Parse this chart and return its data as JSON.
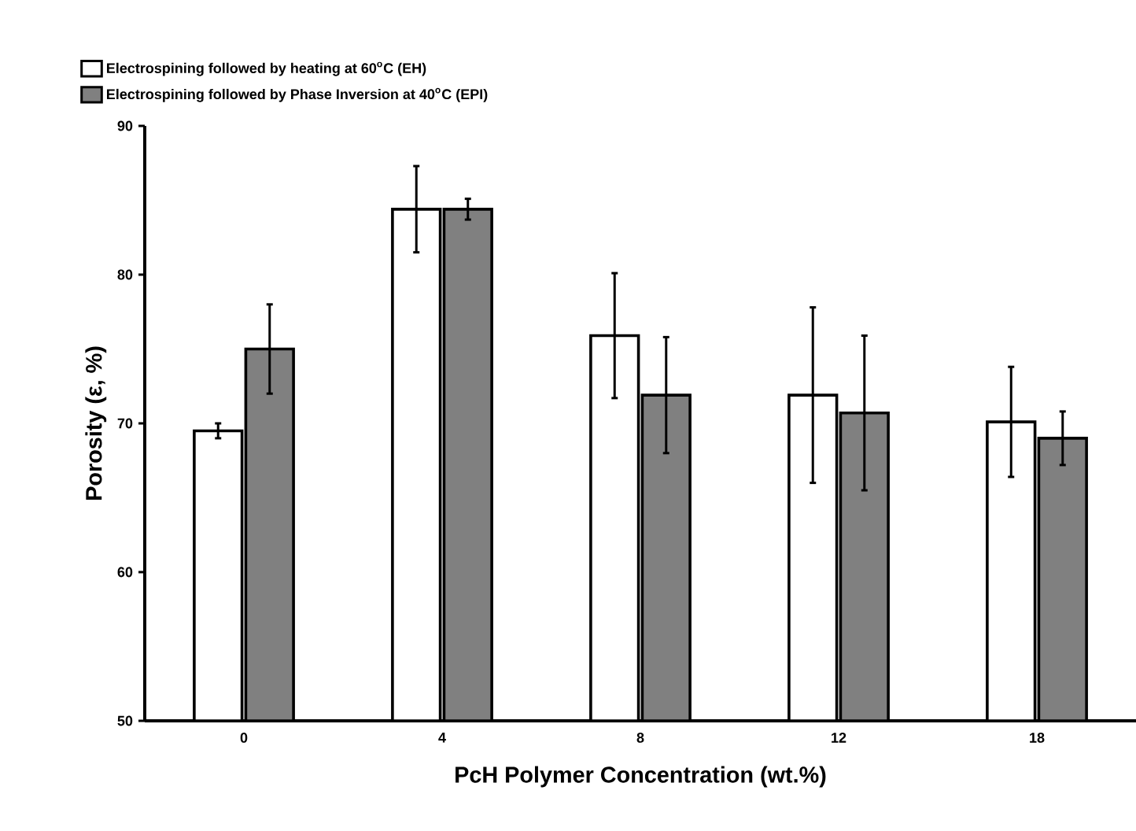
{
  "chart_data": {
    "type": "bar",
    "xlabel": "PcH Polymer Concentration (wt.%)",
    "ylabel": "Porosity (ε, %)",
    "categories": [
      "0",
      "4",
      "8",
      "12",
      "18"
    ],
    "series": [
      {
        "name": "Electrospining followed by heating at 60$^{o}$C (EH)",
        "color": "#ffffff",
        "values": [
          69.5,
          84.4,
          75.9,
          71.9,
          70.1
        ],
        "errors": [
          0.5,
          2.9,
          4.2,
          5.9,
          3.7
        ]
      },
      {
        "name": "Electrospining followed by Phase Inversion at 40$^{o}$C (EPI)",
        "color": "#808080",
        "values": [
          75.0,
          84.4,
          71.9,
          70.7,
          69.0
        ],
        "errors": [
          3.0,
          0.7,
          3.9,
          5.2,
          1.8
        ]
      }
    ],
    "ylim": [
      50,
      90
    ],
    "yticks": [
      50,
      60,
      70,
      80,
      90
    ],
    "grid": false,
    "legend": "top left"
  }
}
